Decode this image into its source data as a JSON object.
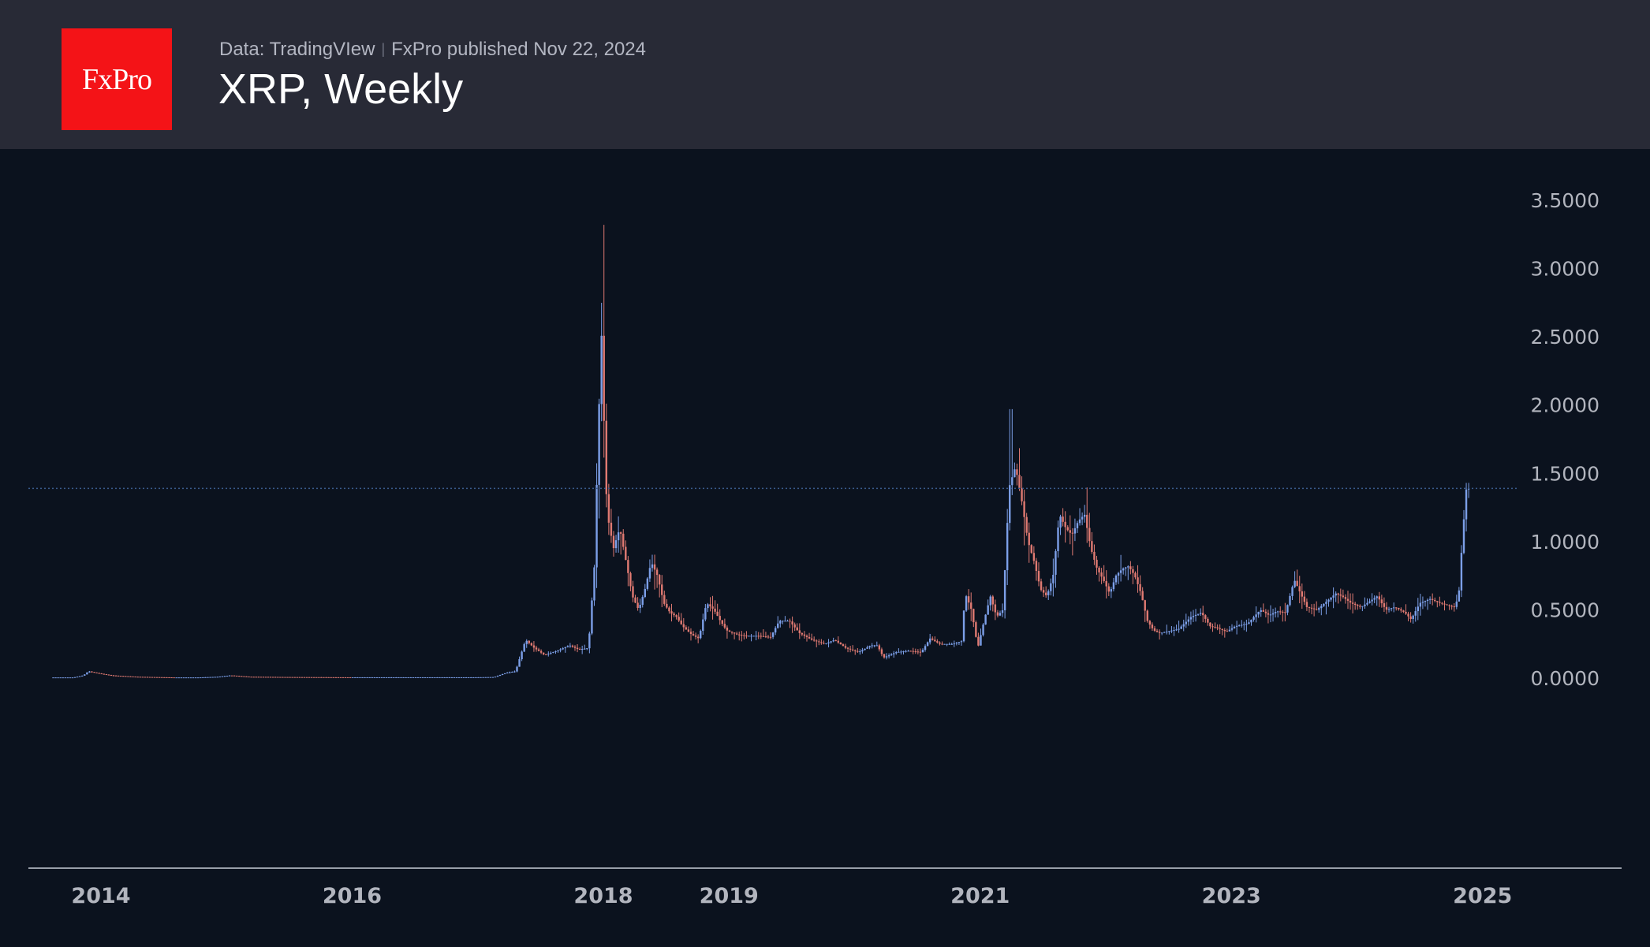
{
  "header": {
    "logo_text": "FxPro",
    "data_source": "Data: TradingVIew",
    "publisher": "FxPro published Nov 22, 2024",
    "title": "XRP, Weekly"
  },
  "colors": {
    "background": "#0b121e",
    "header_bg": "#282a36",
    "logo_red": "#f41317",
    "up": "#7c9fe8",
    "down": "#e07a72",
    "price_line": "#3a5b8c",
    "axis_text": "#b2b5be"
  },
  "chart_data": {
    "type": "line",
    "title": "XRP, Weekly",
    "xlabel": "",
    "ylabel": "",
    "xlim": [
      2013.7,
      2024.95
    ],
    "ylim": [
      -0.15,
      3.65
    ],
    "y_ticks": [
      "3.5000",
      "3.0000",
      "2.5000",
      "2.0000",
      "1.5000",
      "1.0000",
      "0.5000",
      "0.0000"
    ],
    "x_ticks": [
      "2014",
      "2016",
      "2018",
      "2019",
      "2021",
      "2023",
      "2025"
    ],
    "x_tick_positions": [
      2014.0,
      2016.0,
      2018.0,
      2019.0,
      2021.0,
      2023.0,
      2025.0
    ],
    "grid": false,
    "current_price_level": 1.39,
    "series": [
      {
        "name": "",
        "points": [
          [
            2013.62,
            0.005
          ],
          [
            2013.8,
            0.005
          ],
          [
            2013.88,
            0.02
          ],
          [
            2013.92,
            0.05
          ],
          [
            2014.0,
            0.035
          ],
          [
            2014.1,
            0.02
          ],
          [
            2014.3,
            0.01
          ],
          [
            2014.6,
            0.005
          ],
          [
            2014.8,
            0.005
          ],
          [
            2014.95,
            0.01
          ],
          [
            2015.05,
            0.02
          ],
          [
            2015.2,
            0.01
          ],
          [
            2015.5,
            0.008
          ],
          [
            2016.0,
            0.006
          ],
          [
            2016.5,
            0.006
          ],
          [
            2017.0,
            0.006
          ],
          [
            2017.15,
            0.008
          ],
          [
            2017.25,
            0.04
          ],
          [
            2017.32,
            0.05
          ],
          [
            2017.4,
            0.28
          ],
          [
            2017.47,
            0.22
          ],
          [
            2017.55,
            0.17
          ],
          [
            2017.65,
            0.2
          ],
          [
            2017.75,
            0.24
          ],
          [
            2017.82,
            0.21
          ],
          [
            2017.9,
            0.22
          ],
          [
            2017.95,
            0.85
          ],
          [
            2017.98,
            1.9
          ],
          [
            2018.0,
            2.3
          ],
          [
            2018.01,
            2.75
          ],
          [
            2018.03,
            1.5
          ],
          [
            2018.06,
            1.15
          ],
          [
            2018.1,
            0.95
          ],
          [
            2018.15,
            1.1
          ],
          [
            2018.2,
            0.85
          ],
          [
            2018.25,
            0.6
          ],
          [
            2018.3,
            0.5
          ],
          [
            2018.35,
            0.65
          ],
          [
            2018.4,
            0.85
          ],
          [
            2018.45,
            0.75
          ],
          [
            2018.5,
            0.55
          ],
          [
            2018.55,
            0.48
          ],
          [
            2018.6,
            0.45
          ],
          [
            2018.65,
            0.38
          ],
          [
            2018.72,
            0.32
          ],
          [
            2018.78,
            0.29
          ],
          [
            2018.84,
            0.55
          ],
          [
            2018.9,
            0.5
          ],
          [
            2018.95,
            0.42
          ],
          [
            2019.0,
            0.35
          ],
          [
            2019.08,
            0.32
          ],
          [
            2019.15,
            0.31
          ],
          [
            2019.25,
            0.31
          ],
          [
            2019.35,
            0.3
          ],
          [
            2019.42,
            0.42
          ],
          [
            2019.5,
            0.42
          ],
          [
            2019.58,
            0.33
          ],
          [
            2019.68,
            0.28
          ],
          [
            2019.78,
            0.25
          ],
          [
            2019.86,
            0.28
          ],
          [
            2019.95,
            0.22
          ],
          [
            2020.05,
            0.19
          ],
          [
            2020.15,
            0.24
          ],
          [
            2020.2,
            0.24
          ],
          [
            2020.25,
            0.15
          ],
          [
            2020.35,
            0.19
          ],
          [
            2020.45,
            0.2
          ],
          [
            2020.55,
            0.19
          ],
          [
            2020.62,
            0.29
          ],
          [
            2020.7,
            0.25
          ],
          [
            2020.8,
            0.25
          ],
          [
            2020.87,
            0.27
          ],
          [
            2020.9,
            0.62
          ],
          [
            2020.95,
            0.5
          ],
          [
            2021.0,
            0.22
          ],
          [
            2021.05,
            0.42
          ],
          [
            2021.1,
            0.6
          ],
          [
            2021.15,
            0.45
          ],
          [
            2021.2,
            0.5
          ],
          [
            2021.25,
            1.4
          ],
          [
            2021.3,
            1.55
          ],
          [
            2021.35,
            1.3
          ],
          [
            2021.4,
            1.0
          ],
          [
            2021.45,
            0.85
          ],
          [
            2021.5,
            0.65
          ],
          [
            2021.55,
            0.6
          ],
          [
            2021.6,
            0.75
          ],
          [
            2021.65,
            1.2
          ],
          [
            2021.7,
            1.1
          ],
          [
            2021.75,
            1.05
          ],
          [
            2021.8,
            1.15
          ],
          [
            2021.85,
            1.2
          ],
          [
            2021.9,
            0.95
          ],
          [
            2021.95,
            0.8
          ],
          [
            2022.0,
            0.72
          ],
          [
            2022.05,
            0.62
          ],
          [
            2022.1,
            0.75
          ],
          [
            2022.15,
            0.8
          ],
          [
            2022.2,
            0.82
          ],
          [
            2022.25,
            0.75
          ],
          [
            2022.3,
            0.62
          ],
          [
            2022.35,
            0.42
          ],
          [
            2022.4,
            0.35
          ],
          [
            2022.45,
            0.33
          ],
          [
            2022.5,
            0.34
          ],
          [
            2022.6,
            0.36
          ],
          [
            2022.7,
            0.45
          ],
          [
            2022.78,
            0.48
          ],
          [
            2022.85,
            0.38
          ],
          [
            2022.9,
            0.37
          ],
          [
            2022.98,
            0.34
          ],
          [
            2023.05,
            0.38
          ],
          [
            2023.15,
            0.4
          ],
          [
            2023.25,
            0.5
          ],
          [
            2023.32,
            0.46
          ],
          [
            2023.38,
            0.49
          ],
          [
            2023.45,
            0.48
          ],
          [
            2023.52,
            0.72
          ],
          [
            2023.57,
            0.62
          ],
          [
            2023.62,
            0.52
          ],
          [
            2023.7,
            0.5
          ],
          [
            2023.8,
            0.58
          ],
          [
            2023.85,
            0.62
          ],
          [
            2023.9,
            0.6
          ],
          [
            2023.97,
            0.55
          ],
          [
            2024.05,
            0.52
          ],
          [
            2024.1,
            0.55
          ],
          [
            2024.18,
            0.6
          ],
          [
            2024.25,
            0.5
          ],
          [
            2024.32,
            0.52
          ],
          [
            2024.4,
            0.48
          ],
          [
            2024.45,
            0.43
          ],
          [
            2024.52,
            0.55
          ],
          [
            2024.6,
            0.58
          ],
          [
            2024.68,
            0.55
          ],
          [
            2024.75,
            0.53
          ],
          [
            2024.8,
            0.52
          ],
          [
            2024.83,
            0.62
          ],
          [
            2024.86,
            1.05
          ],
          [
            2024.89,
            1.39
          ]
        ]
      }
    ]
  }
}
